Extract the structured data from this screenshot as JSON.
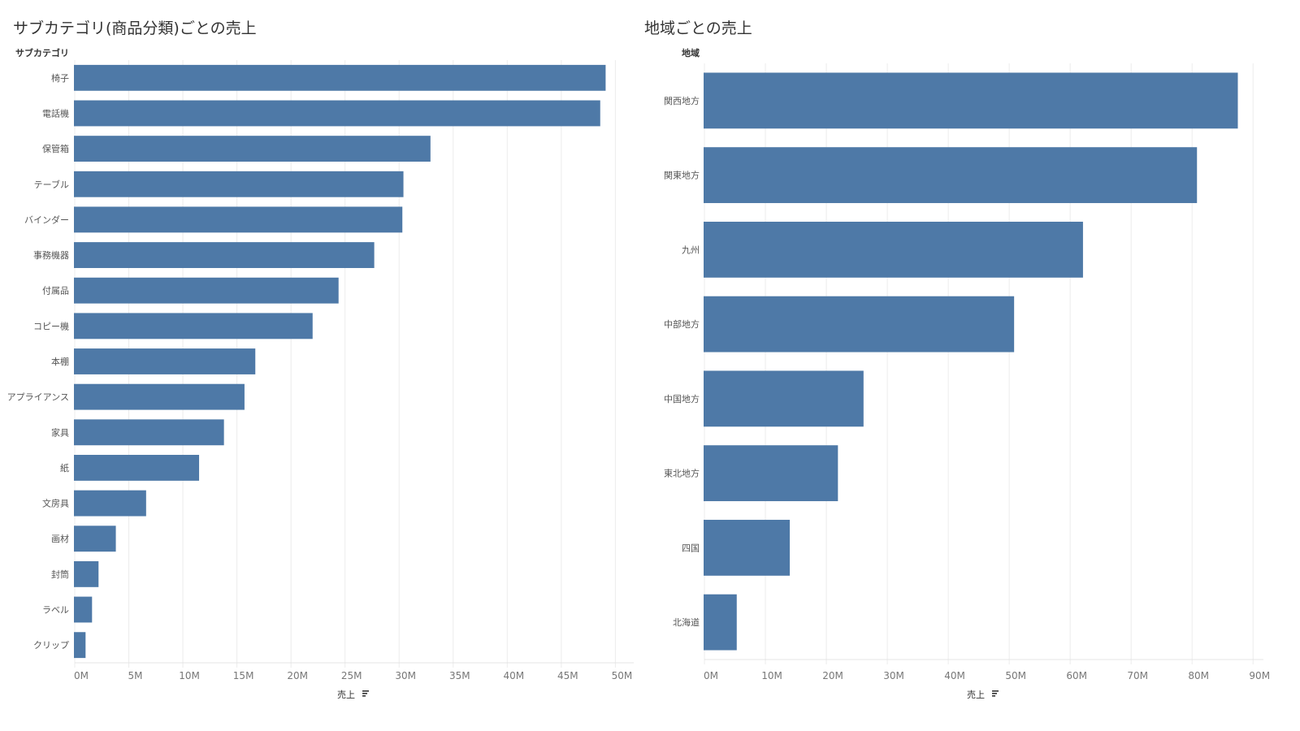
{
  "chart_data": [
    {
      "type": "bar",
      "orientation": "horizontal",
      "title": "サブカテゴリ(商品分類)ごとの売上",
      "ylabel": "サブカテゴリ",
      "xlabel": "売上",
      "xlim": [
        0,
        51.7
      ],
      "x_ticks": [
        "0M",
        "5M",
        "10M",
        "15M",
        "20M",
        "25M",
        "30M",
        "35M",
        "40M",
        "45M",
        "50M"
      ],
      "x_tick_values": [
        0,
        5,
        10,
        15,
        20,
        25,
        30,
        35,
        40,
        45,
        50
      ],
      "grid": true,
      "color": "#4e79a7",
      "categories": [
        "椅子",
        "電話機",
        "保管箱",
        "テーブル",
        "バインダー",
        "事務機器",
        "付属品",
        "コピー機",
        "本棚",
        "アプライアンス",
        "家具",
        "紙",
        "文房具",
        "画材",
        "封筒",
        "ラベル",
        "クリップ"
      ],
      "values": [
        49.1,
        48.6,
        32.9,
        30.4,
        30.3,
        27.7,
        24.4,
        22.0,
        16.7,
        15.7,
        13.8,
        11.5,
        6.6,
        3.8,
        2.2,
        1.6,
        1.0
      ],
      "units": "M"
    },
    {
      "type": "bar",
      "orientation": "horizontal",
      "title": "地域ごとの売上",
      "ylabel": "地域",
      "xlabel": "売上",
      "xlim": [
        0,
        91.7
      ],
      "x_ticks": [
        "0M",
        "10M",
        "20M",
        "30M",
        "40M",
        "50M",
        "60M",
        "70M",
        "80M",
        "90M"
      ],
      "x_tick_values": [
        0,
        10,
        20,
        30,
        40,
        50,
        60,
        70,
        80,
        90
      ],
      "grid": true,
      "color": "#4e79a7",
      "categories": [
        "関西地方",
        "関東地方",
        "九州",
        "中部地方",
        "中国地方",
        "東北地方",
        "四国",
        "北海道"
      ],
      "values": [
        87.5,
        80.8,
        62.1,
        50.8,
        26.1,
        21.9,
        14.0,
        5.3
      ],
      "units": "M"
    }
  ]
}
